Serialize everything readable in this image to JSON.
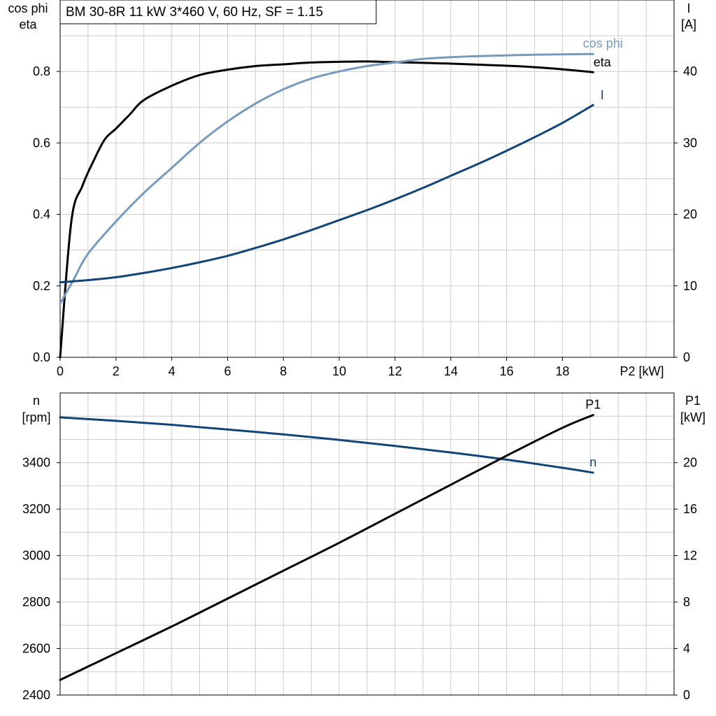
{
  "title": "BM 30-8R   11 kW   3*460 V, 60 Hz, SF = 1.15",
  "colors": {
    "eta": "#000000",
    "cosphi": "#7799bb",
    "current": "#114477",
    "speed": "#114477",
    "p1": "#000000",
    "grid": "#cccccc",
    "axis": "#000000"
  },
  "chart_data": [
    {
      "type": "line",
      "title": "BM 30-8R   11 kW   3*460 V, 60 Hz, SF = 1.15",
      "xlabel": "P2 [kW]",
      "xlim": [
        0,
        22
      ],
      "x_ticks": [
        "0",
        "2",
        "4",
        "6",
        "8",
        "10",
        "12",
        "14",
        "16",
        "18"
      ],
      "ylabel_left": [
        "cos phi",
        "eta"
      ],
      "ylim_left": [
        0,
        1.0
      ],
      "y_ticks_left": [
        "0.0",
        "0.2",
        "0.4",
        "0.6",
        "0.8"
      ],
      "ylabel_right": [
        "I",
        "[A]"
      ],
      "ylim_right": [
        0,
        50
      ],
      "y_ticks_right": [
        "0",
        "10",
        "20",
        "30",
        "40"
      ],
      "grid": true,
      "series": [
        {
          "name": "eta",
          "axis": "left",
          "x": [
            0,
            0.4,
            0.8,
            1.2,
            1.6,
            2.0,
            2.5,
            3.0,
            4.0,
            5.0,
            6.0,
            7.0,
            8.0,
            9.0,
            10.0,
            11.0,
            12.0,
            13.0,
            14.0,
            15.0,
            16.0,
            17.0,
            18.0,
            19.1
          ],
          "y": [
            0.0,
            0.38,
            0.48,
            0.55,
            0.61,
            0.64,
            0.68,
            0.72,
            0.76,
            0.79,
            0.805,
            0.815,
            0.82,
            0.825,
            0.827,
            0.828,
            0.826,
            0.824,
            0.822,
            0.819,
            0.816,
            0.812,
            0.806,
            0.798
          ]
        },
        {
          "name": "cos phi",
          "axis": "left",
          "x": [
            0,
            0.5,
            1.0,
            2.0,
            3.0,
            4.0,
            5.0,
            6.0,
            7.0,
            8.0,
            9.0,
            10.0,
            11.0,
            12.0,
            13.0,
            14.0,
            15.0,
            16.0,
            17.0,
            18.0,
            19.1
          ],
          "y": [
            0.15,
            0.22,
            0.29,
            0.38,
            0.46,
            0.53,
            0.6,
            0.66,
            0.71,
            0.75,
            0.78,
            0.8,
            0.815,
            0.825,
            0.835,
            0.84,
            0.843,
            0.845,
            0.847,
            0.848,
            0.849
          ]
        },
        {
          "name": "I",
          "axis": "right",
          "x": [
            0,
            1,
            2,
            3,
            4,
            5,
            6,
            7,
            8,
            9,
            10,
            11,
            12,
            13,
            14,
            15,
            16,
            17,
            18,
            19.1
          ],
          "y": [
            10.5,
            10.8,
            11.2,
            11.8,
            12.5,
            13.3,
            14.2,
            15.3,
            16.5,
            17.8,
            19.2,
            20.6,
            22.1,
            23.7,
            25.4,
            27.1,
            28.9,
            30.8,
            32.8,
            35.3
          ]
        }
      ]
    },
    {
      "type": "line",
      "xlim": [
        0,
        22
      ],
      "ylabel_left": [
        "n",
        "[rpm]"
      ],
      "ylim_left": [
        2400,
        3700
      ],
      "y_ticks_left": [
        "2400",
        "2600",
        "2800",
        "3000",
        "3200",
        "3400"
      ],
      "ylabel_right": [
        "P1",
        "[kW]"
      ],
      "ylim_right": [
        0,
        26
      ],
      "y_ticks_right": [
        "0",
        "4",
        "8",
        "12",
        "16",
        "20"
      ],
      "grid": true,
      "series": [
        {
          "name": "n",
          "axis": "left",
          "x": [
            0,
            2,
            4,
            6,
            8,
            10,
            12,
            14,
            16,
            18,
            19.1
          ],
          "y": [
            3595,
            3580,
            3563,
            3543,
            3522,
            3498,
            3472,
            3444,
            3413,
            3378,
            3357
          ]
        },
        {
          "name": "P1",
          "axis": "right",
          "x": [
            0,
            2,
            4,
            6,
            8,
            10,
            12,
            14,
            16,
            18,
            19.1
          ],
          "y": [
            1.3,
            3.6,
            5.9,
            8.3,
            10.7,
            13.1,
            15.6,
            18.1,
            20.6,
            23.0,
            24.1
          ]
        }
      ]
    }
  ]
}
